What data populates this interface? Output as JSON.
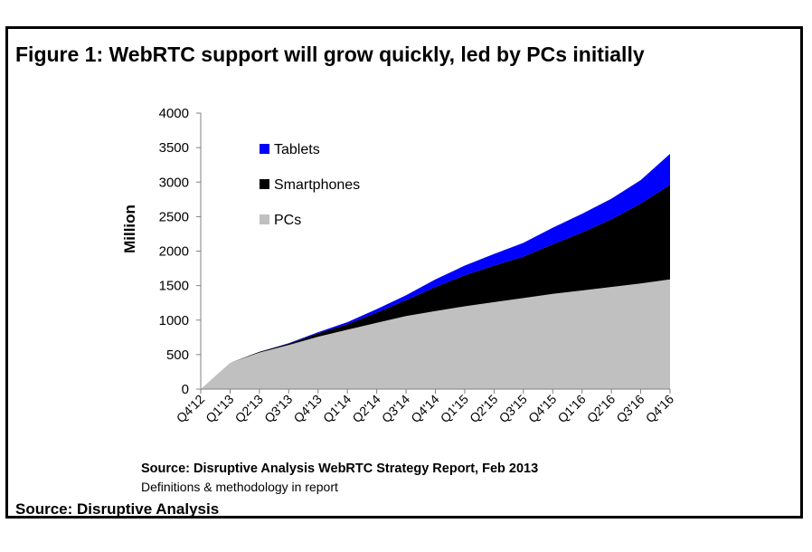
{
  "figure": {
    "title": "Figure 1: WebRTC support will grow quickly, led by PCs initially",
    "source_report": "Source: Disruptive Analysis WebRTC Strategy Report, Feb 2013",
    "methodology_note": "Definitions & methodology in report",
    "source": "Source: Disruptive Analysis"
  },
  "chart_data": {
    "type": "area",
    "stacked": true,
    "title": "Figure 1: WebRTC support will grow quickly, led by PCs initially",
    "xlabel": "",
    "ylabel": "Million",
    "ylim": [
      0,
      4000
    ],
    "yticks": [
      "0",
      "500",
      "1000",
      "1500",
      "2000",
      "2500",
      "3000",
      "3500",
      "4000"
    ],
    "categories": [
      "Q4'12",
      "Q1'13",
      "Q2'13",
      "Q3'13",
      "Q4'13",
      "Q1'14",
      "Q2'14",
      "Q3'14",
      "Q4'14",
      "Q1'15",
      "Q2'15",
      "Q3'15",
      "Q4'15",
      "Q1'16",
      "Q2'16",
      "Q3'16",
      "Q4'16"
    ],
    "grid": false,
    "legend_position": "top-left inside plot",
    "series": [
      {
        "name": "PCs",
        "color": "#c0c0c0",
        "values": [
          0,
          380,
          530,
          640,
          760,
          860,
          960,
          1060,
          1130,
          1200,
          1260,
          1320,
          1380,
          1430,
          1480,
          1530,
          1590
        ]
      },
      {
        "name": "Smartphones",
        "color": "#000000",
        "values": [
          0,
          0,
          10,
          20,
          50,
          80,
          150,
          230,
          350,
          450,
          530,
          600,
          720,
          840,
          980,
          1160,
          1370
        ]
      },
      {
        "name": "Tablets",
        "color": "#0000ff",
        "values": [
          0,
          0,
          0,
          5,
          15,
          30,
          50,
          70,
          110,
          140,
          170,
          200,
          240,
          270,
          300,
          340,
          450
        ]
      }
    ]
  }
}
